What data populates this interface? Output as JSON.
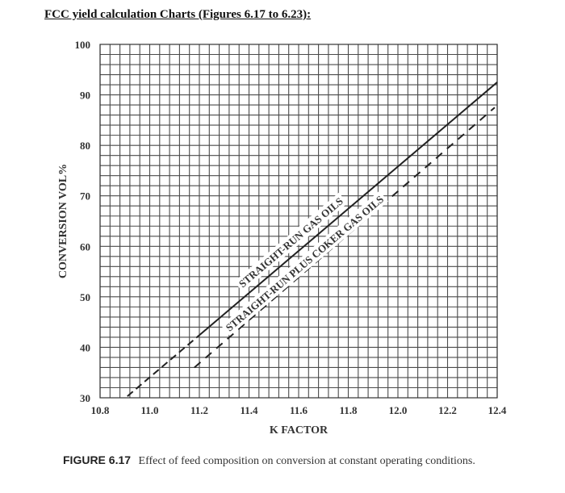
{
  "page": {
    "heading": "FCC yield calculation Charts (Figures 6.17 to 6.23):"
  },
  "figure": {
    "label": "FIGURE 6.17",
    "caption": "Effect of feed composition on conversion at constant operating conditions."
  },
  "chart_data": {
    "type": "line",
    "title": "Effect of feed composition on conversion at constant operating conditions",
    "xlabel": "K FACTOR",
    "ylabel": "CONVERSION VOL%",
    "xlim": [
      10.8,
      12.4
    ],
    "ylim": [
      30,
      100
    ],
    "xticks": [
      10.8,
      11.0,
      11.2,
      11.4,
      11.6,
      11.8,
      12.0,
      12.2,
      12.4
    ],
    "xtick_labels": [
      "10.8",
      "11.0",
      "11.2",
      "11.4",
      "11.6",
      "11.8",
      "12.0",
      "12.2",
      "12.4"
    ],
    "yticks": [
      30,
      40,
      50,
      60,
      70,
      80,
      90,
      100
    ],
    "ytick_labels": [
      "30",
      "40",
      "50",
      "60",
      "70",
      "80",
      "90",
      "100"
    ],
    "grid": true,
    "grid_minor_x_step": 0.04,
    "grid_minor_y_step": 2,
    "legend": "inline labels along lines",
    "series": [
      {
        "name": "STRAIGHT-RUN GAS OILS",
        "style": "dashed below K≈11.2, solid above",
        "x": [
          10.91,
          11.2,
          11.6,
          12.0,
          12.4
        ],
        "y": [
          30.3,
          42.4,
          59.0,
          75.7,
          92.5
        ]
      },
      {
        "name": "STRAIGHT-RUN PLUS COKER GAS OILS",
        "style": "dashed",
        "x": [
          11.18,
          11.6,
          12.0,
          12.39
        ],
        "y": [
          36.0,
          53.9,
          70.9,
          87.5
        ]
      }
    ]
  }
}
